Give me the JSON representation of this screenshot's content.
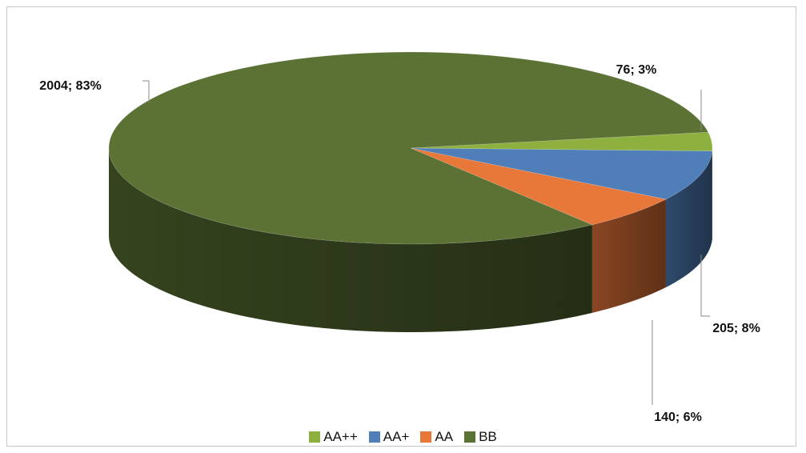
{
  "chart_data": {
    "type": "pie",
    "three_d": true,
    "categories": [
      "AA++",
      "AA+",
      "AA",
      "BB"
    ],
    "values": [
      76,
      205,
      140,
      2004
    ],
    "percent_labels": [
      "3%",
      "8%",
      "6%",
      "83%"
    ],
    "data_labels": [
      "76; 3%",
      "205; 8%",
      "140; 6%",
      "2004; 83%"
    ],
    "colors": [
      "#8db03e",
      "#4f7eb8",
      "#e8773a",
      "#5b7234"
    ],
    "legend_position": "bottom",
    "title": ""
  }
}
